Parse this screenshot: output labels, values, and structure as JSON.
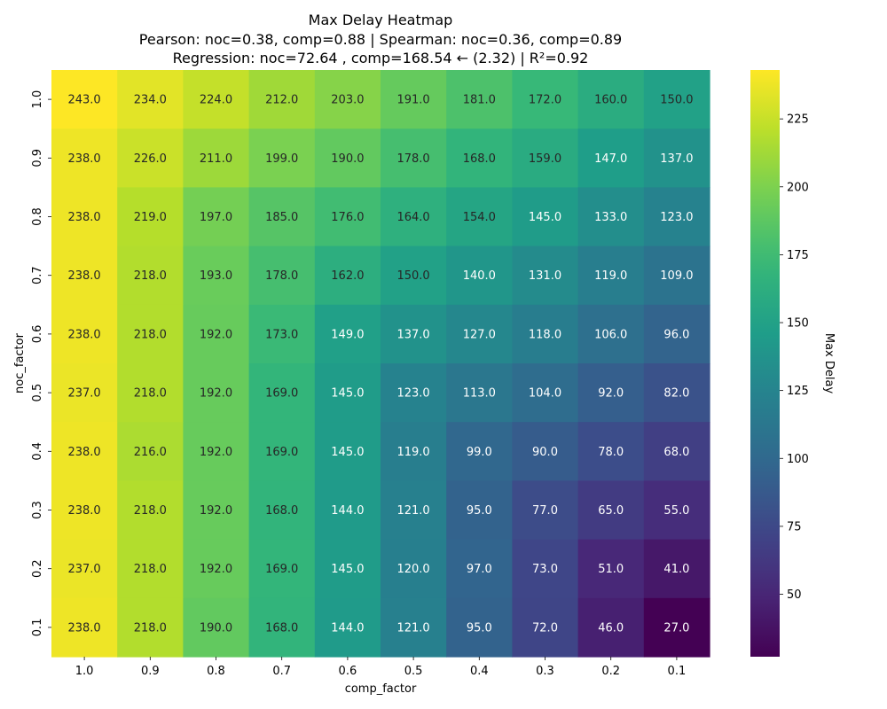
{
  "chart_data": {
    "type": "heatmap",
    "title_lines": [
      "Max Delay Heatmap",
      "Pearson: noc=0.38, comp=0.88 | Spearman: noc=0.36, comp=0.89",
      "Regression: noc=72.64 , comp=168.54 ← (2.32) | R²=0.92"
    ],
    "xlabel": "comp_factor",
    "ylabel": "noc_factor",
    "x_categories": [
      "1.0",
      "0.9",
      "0.8",
      "0.7",
      "0.6",
      "0.5",
      "0.4",
      "0.3",
      "0.2",
      "0.1"
    ],
    "y_categories": [
      "1.0",
      "0.9",
      "0.8",
      "0.7",
      "0.6",
      "0.5",
      "0.4",
      "0.3",
      "0.2",
      "0.1"
    ],
    "values": [
      [
        243.0,
        234.0,
        224.0,
        212.0,
        203.0,
        191.0,
        181.0,
        172.0,
        160.0,
        150.0
      ],
      [
        238.0,
        226.0,
        211.0,
        199.0,
        190.0,
        178.0,
        168.0,
        159.0,
        147.0,
        137.0
      ],
      [
        238.0,
        219.0,
        197.0,
        185.0,
        176.0,
        164.0,
        154.0,
        145.0,
        133.0,
        123.0
      ],
      [
        238.0,
        218.0,
        193.0,
        178.0,
        162.0,
        150.0,
        140.0,
        131.0,
        119.0,
        109.0
      ],
      [
        238.0,
        218.0,
        192.0,
        173.0,
        149.0,
        137.0,
        127.0,
        118.0,
        106.0,
        96.0
      ],
      [
        237.0,
        218.0,
        192.0,
        169.0,
        145.0,
        123.0,
        113.0,
        104.0,
        92.0,
        82.0
      ],
      [
        238.0,
        216.0,
        192.0,
        169.0,
        145.0,
        119.0,
        99.0,
        90.0,
        78.0,
        68.0
      ],
      [
        238.0,
        218.0,
        192.0,
        168.0,
        144.0,
        121.0,
        95.0,
        77.0,
        65.0,
        55.0
      ],
      [
        237.0,
        218.0,
        192.0,
        169.0,
        145.0,
        120.0,
        97.0,
        73.0,
        51.0,
        41.0
      ],
      [
        238.0,
        218.0,
        190.0,
        168.0,
        144.0,
        121.0,
        95.0,
        72.0,
        46.0,
        27.0
      ]
    ],
    "vmin": 27,
    "vmax": 243,
    "colormap": "viridis",
    "colorbar": {
      "label": "Max Delay",
      "ticks": [
        50,
        75,
        100,
        125,
        150,
        175,
        200,
        225
      ]
    },
    "annotation_threshold": 150,
    "annotation_colors": {
      "light": "#ffffff",
      "dark": "#262626"
    }
  }
}
